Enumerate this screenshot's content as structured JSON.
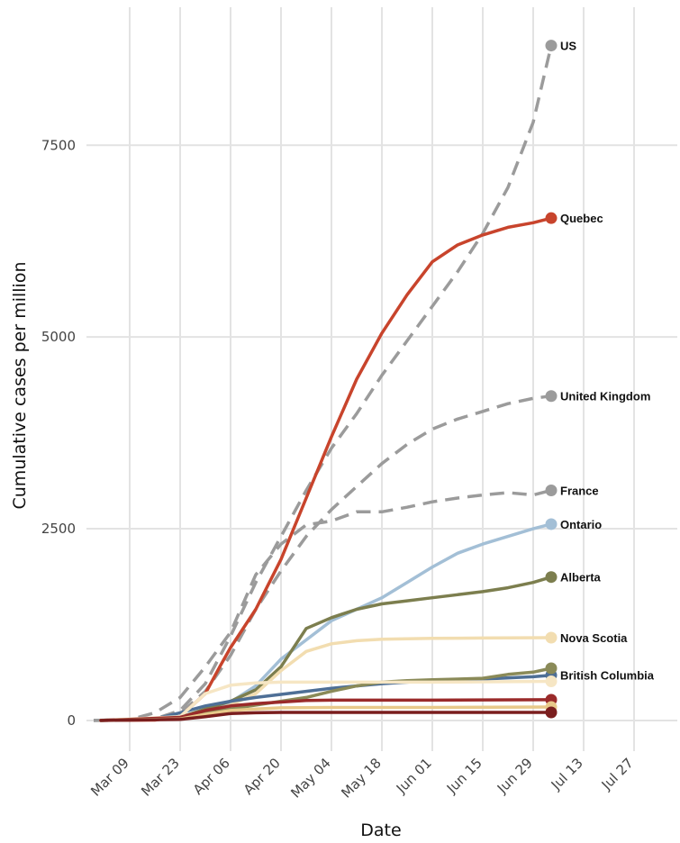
{
  "chart_data": {
    "type": "line",
    "xlabel": "Date",
    "ylabel": "Cumulative cases per million",
    "x_ticks": [
      "Mar 09",
      "Mar 23",
      "Apr 06",
      "Apr 20",
      "May 04",
      "May 18",
      "Jun 01",
      "Jun 15",
      "Jun 29",
      "Jul 13",
      "Jul 27"
    ],
    "y_ticks": [
      0,
      2500,
      5000,
      7500
    ],
    "xlim": [
      "2020-02-26",
      "2020-08-08"
    ],
    "ylim": [
      -400,
      9300
    ],
    "grid": true,
    "legend": "direct labels at line ends",
    "series": [
      {
        "name": "US",
        "color": "#9b9b9b",
        "dashed": true,
        "show_label": true,
        "points": [
          [
            "2020-02-28",
            0
          ],
          [
            "2020-03-09",
            3
          ],
          [
            "2020-03-16",
            20
          ],
          [
            "2020-03-23",
            130
          ],
          [
            "2020-03-30",
            480
          ],
          [
            "2020-04-06",
            1100
          ],
          [
            "2020-04-13",
            1800
          ],
          [
            "2020-04-20",
            2400
          ],
          [
            "2020-04-27",
            3000
          ],
          [
            "2020-05-04",
            3550
          ],
          [
            "2020-05-11",
            4000
          ],
          [
            "2020-05-18",
            4500
          ],
          [
            "2020-05-25",
            4950
          ],
          [
            "2020-06-01",
            5400
          ],
          [
            "2020-06-08",
            5850
          ],
          [
            "2020-06-15",
            6350
          ],
          [
            "2020-06-22",
            6950
          ],
          [
            "2020-06-29",
            7800
          ],
          [
            "2020-07-04",
            8800
          ]
        ]
      },
      {
        "name": "United Kingdom",
        "color": "#9b9b9b",
        "dashed": true,
        "show_label": true,
        "points": [
          [
            "2020-02-28",
            0
          ],
          [
            "2020-03-16",
            20
          ],
          [
            "2020-03-23",
            90
          ],
          [
            "2020-03-30",
            380
          ],
          [
            "2020-04-06",
            850
          ],
          [
            "2020-04-13",
            1450
          ],
          [
            "2020-04-20",
            1950
          ],
          [
            "2020-04-27",
            2400
          ],
          [
            "2020-05-04",
            2750
          ],
          [
            "2020-05-11",
            3050
          ],
          [
            "2020-05-18",
            3350
          ],
          [
            "2020-05-25",
            3600
          ],
          [
            "2020-06-01",
            3800
          ],
          [
            "2020-06-08",
            3930
          ],
          [
            "2020-06-15",
            4030
          ],
          [
            "2020-06-22",
            4130
          ],
          [
            "2020-06-29",
            4200
          ],
          [
            "2020-07-04",
            4230
          ]
        ]
      },
      {
        "name": "France",
        "color": "#9b9b9b",
        "dashed": true,
        "show_label": true,
        "points": [
          [
            "2020-02-28",
            0
          ],
          [
            "2020-03-09",
            10
          ],
          [
            "2020-03-16",
            100
          ],
          [
            "2020-03-23",
            300
          ],
          [
            "2020-03-30",
            700
          ],
          [
            "2020-04-06",
            1150
          ],
          [
            "2020-04-13",
            1900
          ],
          [
            "2020-04-20",
            2300
          ],
          [
            "2020-04-27",
            2550
          ],
          [
            "2020-05-04",
            2600
          ],
          [
            "2020-05-11",
            2720
          ],
          [
            "2020-05-18",
            2720
          ],
          [
            "2020-05-25",
            2780
          ],
          [
            "2020-06-01",
            2850
          ],
          [
            "2020-06-08",
            2900
          ],
          [
            "2020-06-15",
            2940
          ],
          [
            "2020-06-22",
            2970
          ],
          [
            "2020-06-29",
            2940
          ],
          [
            "2020-07-04",
            3000
          ]
        ]
      },
      {
        "name": "Quebec",
        "color": "#c8442c",
        "dashed": false,
        "show_label": true,
        "points": [
          [
            "2020-03-01",
            0
          ],
          [
            "2020-03-16",
            5
          ],
          [
            "2020-03-23",
            50
          ],
          [
            "2020-03-30",
            350
          ],
          [
            "2020-04-03",
            700
          ],
          [
            "2020-04-06",
            950
          ],
          [
            "2020-04-13",
            1450
          ],
          [
            "2020-04-20",
            2100
          ],
          [
            "2020-04-27",
            2900
          ],
          [
            "2020-05-04",
            3700
          ],
          [
            "2020-05-11",
            4450
          ],
          [
            "2020-05-18",
            5050
          ],
          [
            "2020-05-25",
            5550
          ],
          [
            "2020-06-01",
            5980
          ],
          [
            "2020-06-08",
            6200
          ],
          [
            "2020-06-15",
            6330
          ],
          [
            "2020-06-22",
            6430
          ],
          [
            "2020-06-29",
            6490
          ],
          [
            "2020-07-04",
            6550
          ]
        ]
      },
      {
        "name": "Ontario",
        "color": "#a3bfd6",
        "dashed": false,
        "show_label": true,
        "points": [
          [
            "2020-03-01",
            0
          ],
          [
            "2020-03-23",
            40
          ],
          [
            "2020-03-30",
            120
          ],
          [
            "2020-04-06",
            240
          ],
          [
            "2020-04-13",
            450
          ],
          [
            "2020-04-20",
            800
          ],
          [
            "2020-04-27",
            1050
          ],
          [
            "2020-05-04",
            1300
          ],
          [
            "2020-05-11",
            1450
          ],
          [
            "2020-05-18",
            1600
          ],
          [
            "2020-05-25",
            1800
          ],
          [
            "2020-06-01",
            2000
          ],
          [
            "2020-06-08",
            2180
          ],
          [
            "2020-06-15",
            2300
          ],
          [
            "2020-06-22",
            2400
          ],
          [
            "2020-06-29",
            2500
          ],
          [
            "2020-07-04",
            2560
          ]
        ]
      },
      {
        "name": "Alberta",
        "color": "#7c7e4e",
        "dashed": false,
        "show_label": true,
        "points": [
          [
            "2020-03-01",
            0
          ],
          [
            "2020-03-23",
            40
          ],
          [
            "2020-03-30",
            150
          ],
          [
            "2020-04-06",
            250
          ],
          [
            "2020-04-13",
            400
          ],
          [
            "2020-04-20",
            700
          ],
          [
            "2020-04-27",
            1200
          ],
          [
            "2020-05-04",
            1340
          ],
          [
            "2020-05-11",
            1450
          ],
          [
            "2020-05-18",
            1520
          ],
          [
            "2020-05-25",
            1560
          ],
          [
            "2020-06-01",
            1600
          ],
          [
            "2020-06-08",
            1640
          ],
          [
            "2020-06-15",
            1680
          ],
          [
            "2020-06-22",
            1730
          ],
          [
            "2020-06-29",
            1800
          ],
          [
            "2020-07-04",
            1870
          ]
        ]
      },
      {
        "name": "Nova Scotia",
        "color": "#f2ddb0",
        "dashed": false,
        "show_label": true,
        "points": [
          [
            "2020-03-01",
            0
          ],
          [
            "2020-03-23",
            30
          ],
          [
            "2020-03-30",
            100
          ],
          [
            "2020-04-06",
            200
          ],
          [
            "2020-04-13",
            350
          ],
          [
            "2020-04-20",
            650
          ],
          [
            "2020-04-27",
            900
          ],
          [
            "2020-05-04",
            1000
          ],
          [
            "2020-05-11",
            1040
          ],
          [
            "2020-05-18",
            1060
          ],
          [
            "2020-05-25",
            1065
          ],
          [
            "2020-06-01",
            1070
          ],
          [
            "2020-06-15",
            1075
          ],
          [
            "2020-07-04",
            1080
          ]
        ]
      },
      {
        "name": "British Columbia",
        "color": "#4e6f96",
        "dashed": false,
        "show_label": true,
        "points": [
          [
            "2020-03-01",
            0
          ],
          [
            "2020-03-16",
            20
          ],
          [
            "2020-03-23",
            100
          ],
          [
            "2020-03-30",
            190
          ],
          [
            "2020-04-06",
            250
          ],
          [
            "2020-04-13",
            300
          ],
          [
            "2020-04-20",
            340
          ],
          [
            "2020-04-27",
            380
          ],
          [
            "2020-05-04",
            420
          ],
          [
            "2020-05-11",
            450
          ],
          [
            "2020-05-18",
            480
          ],
          [
            "2020-05-25",
            500
          ],
          [
            "2020-06-01",
            520
          ],
          [
            "2020-06-15",
            540
          ],
          [
            "2020-06-29",
            570
          ],
          [
            "2020-07-04",
            590
          ]
        ]
      },
      {
        "name": "",
        "color": "#8a8a58",
        "dashed": false,
        "show_label": false,
        "points": [
          [
            "2020-03-01",
            0
          ],
          [
            "2020-03-23",
            30
          ],
          [
            "2020-03-30",
            100
          ],
          [
            "2020-04-06",
            150
          ],
          [
            "2020-04-13",
            200
          ],
          [
            "2020-04-20",
            250
          ],
          [
            "2020-04-27",
            300
          ],
          [
            "2020-05-04",
            380
          ],
          [
            "2020-05-11",
            450
          ],
          [
            "2020-05-18",
            500
          ],
          [
            "2020-05-25",
            520
          ],
          [
            "2020-06-01",
            530
          ],
          [
            "2020-06-08",
            540
          ],
          [
            "2020-06-15",
            550
          ],
          [
            "2020-06-22",
            600
          ],
          [
            "2020-06-29",
            630
          ],
          [
            "2020-07-04",
            680
          ]
        ]
      },
      {
        "name": "",
        "color": "#f6e6c4",
        "dashed": false,
        "show_label": false,
        "points": [
          [
            "2020-03-01",
            0
          ],
          [
            "2020-03-23",
            50
          ],
          [
            "2020-03-30",
            350
          ],
          [
            "2020-04-06",
            460
          ],
          [
            "2020-04-13",
            490
          ],
          [
            "2020-04-20",
            500
          ],
          [
            "2020-05-04",
            500
          ],
          [
            "2020-06-01",
            500
          ],
          [
            "2020-07-04",
            510
          ]
        ]
      },
      {
        "name": "",
        "color": "#9a2a2a",
        "dashed": false,
        "show_label": false,
        "points": [
          [
            "2020-03-01",
            0
          ],
          [
            "2020-03-23",
            40
          ],
          [
            "2020-03-30",
            130
          ],
          [
            "2020-04-06",
            190
          ],
          [
            "2020-04-13",
            220
          ],
          [
            "2020-04-20",
            240
          ],
          [
            "2020-04-27",
            260
          ],
          [
            "2020-05-04",
            265
          ],
          [
            "2020-06-01",
            265
          ],
          [
            "2020-07-04",
            270
          ]
        ]
      },
      {
        "name": "",
        "color": "#e8c98a",
        "dashed": false,
        "show_label": false,
        "points": [
          [
            "2020-03-01",
            0
          ],
          [
            "2020-03-23",
            20
          ],
          [
            "2020-03-30",
            80
          ],
          [
            "2020-04-06",
            130
          ],
          [
            "2020-04-13",
            150
          ],
          [
            "2020-04-20",
            165
          ],
          [
            "2020-05-04",
            170
          ],
          [
            "2020-06-01",
            170
          ],
          [
            "2020-07-04",
            175
          ]
        ]
      },
      {
        "name": "",
        "color": "#7a1e1e",
        "dashed": false,
        "show_label": false,
        "points": [
          [
            "2020-03-01",
            0
          ],
          [
            "2020-03-23",
            15
          ],
          [
            "2020-03-30",
            50
          ],
          [
            "2020-04-06",
            90
          ],
          [
            "2020-04-13",
            100
          ],
          [
            "2020-04-20",
            105
          ],
          [
            "2020-05-04",
            105
          ],
          [
            "2020-06-01",
            105
          ],
          [
            "2020-07-04",
            105
          ]
        ]
      }
    ]
  }
}
